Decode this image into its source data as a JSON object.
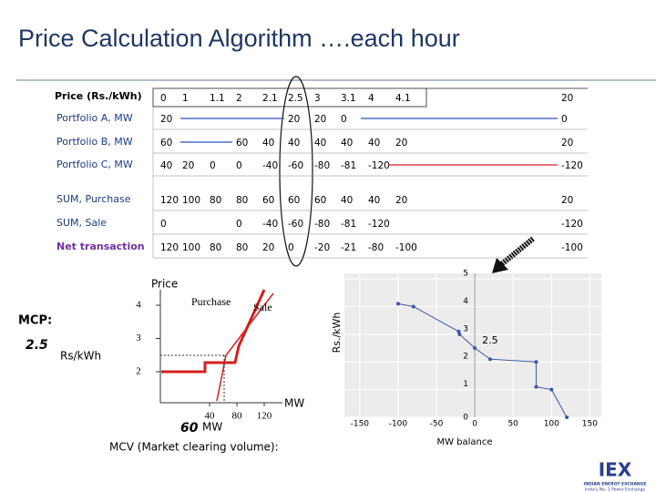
{
  "title": "Price Calculation Algorithm ….each hour",
  "table": {
    "header": {
      "label": "Price (Rs./kWh)",
      "prices": [
        0,
        1,
        1.1,
        2,
        2.1,
        2.5,
        3,
        3.1,
        4,
        4.1,
        20
      ]
    },
    "rows": [
      {
        "label": "Portfolio A, MW",
        "cells": [
          20,
          null,
          null,
          null,
          null,
          20,
          20,
          0,
          null,
          null,
          0
        ]
      },
      {
        "label": "Portfolio B, MW",
        "cells": [
          60,
          null,
          null,
          60,
          40,
          40,
          40,
          40,
          40,
          20,
          20
        ]
      },
      {
        "label": "Portfolio C, MW",
        "cells": [
          40,
          20,
          0,
          0,
          -40,
          -60,
          -80,
          -81,
          -120,
          null,
          -120
        ]
      },
      {
        "label": "SUM, Purchase",
        "cells": [
          120,
          100,
          80,
          80,
          60,
          60,
          60,
          40,
          40,
          20,
          20
        ]
      },
      {
        "label": "SUM, Sale",
        "cells": [
          0,
          null,
          null,
          0,
          -40,
          -60,
          -80,
          -81,
          -120,
          null,
          -120
        ]
      },
      {
        "label": "Net transaction",
        "cells": [
          120,
          100,
          80,
          80,
          20,
          0,
          -20,
          -21,
          -80,
          -100,
          -100
        ]
      }
    ]
  },
  "left_chart": {
    "axis_title": "Price",
    "yticks": [
      4,
      3,
      2
    ],
    "xticks": [
      40,
      80,
      120
    ],
    "purchase_label": "Purchase",
    "sale_label": "Sale",
    "x_unit": "MW",
    "mcp_label": "MCP:",
    "mcp_value": 2.5,
    "mcp_unit": "Rs/kWh",
    "mcv_value": 60,
    "mcv_unit": "MW",
    "mcv_label": "MCV (Market clearing volume):"
  },
  "chart_data": {
    "type": "line",
    "x": [
      -100,
      -80,
      -21,
      -20,
      0,
      20,
      80,
      80,
      100,
      120
    ],
    "series": [
      {
        "color": "#3a56a8",
        "values": [
          4.1,
          4,
          3.1,
          3,
          2.5,
          2.1,
          2,
          1.1,
          1,
          0
        ]
      }
    ],
    "xlim": [
      -170,
      165
    ],
    "ylim": [
      0,
      5.2
    ],
    "xticks": [
      -150,
      -100,
      -50,
      0,
      50,
      100,
      150
    ],
    "yticks": [
      0,
      1,
      2,
      3,
      4,
      5
    ],
    "xlabel": "MW balance",
    "ylabel": "Rs./kWh",
    "grid": true,
    "annotations": [
      {
        "x": 0,
        "y": 2.5
      }
    ]
  },
  "logo": {
    "name": "IEX",
    "line1": "INDIAN ENERGY EXCHANGE",
    "line2": "India's No. 1 Power Exchange"
  }
}
